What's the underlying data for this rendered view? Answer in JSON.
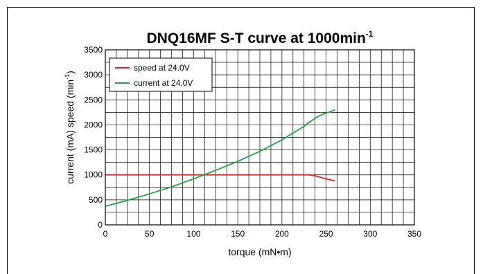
{
  "chart_data": {
    "type": "line",
    "title": "DNQ16MF S-T curve at 1000min",
    "title_superscript": "-1",
    "xlabel": "torque (mN•m)",
    "ylabel_left": "current (mA)",
    "ylabel_right": "speed (min",
    "ylabel_right_superscript": "-1",
    "ylabel_right_close": ")",
    "xlim": [
      0,
      350
    ],
    "ylim": [
      0,
      3500
    ],
    "x_ticks": [
      0,
      50,
      100,
      150,
      200,
      250,
      300,
      350
    ],
    "y_ticks": [
      0,
      500,
      1000,
      1500,
      2000,
      2500,
      3000,
      3500
    ],
    "grid": true,
    "legend_position": "top-left",
    "series": [
      {
        "name": "speed at 24.0V",
        "color": "#e02020",
        "x": [
          0,
          50,
          100,
          150,
          200,
          225,
          230,
          235,
          240,
          245,
          250,
          255,
          260
        ],
        "y": [
          1000,
          1000,
          1000,
          1000,
          1000,
          1000,
          1000,
          990,
          970,
          945,
          920,
          900,
          880
        ]
      },
      {
        "name": "current at 24.0V",
        "color": "#22a040",
        "x": [
          0,
          25,
          50,
          75,
          100,
          125,
          150,
          175,
          200,
          225,
          230,
          235,
          240,
          245,
          250,
          255,
          260
        ],
        "y": [
          370,
          490,
          620,
          760,
          920,
          1090,
          1270,
          1470,
          1700,
          1970,
          2040,
          2100,
          2160,
          2200,
          2240,
          2260,
          2300
        ]
      }
    ]
  }
}
